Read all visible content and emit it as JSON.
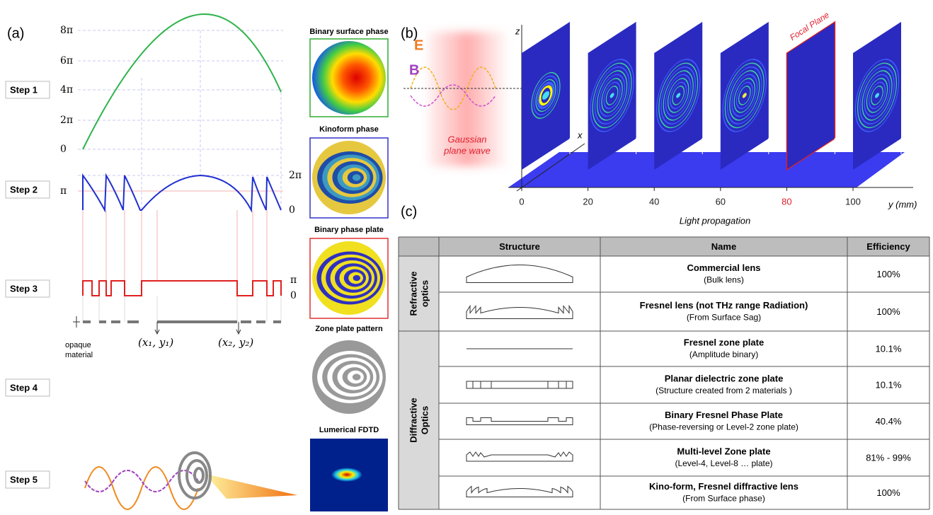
{
  "panel_a": {
    "label": "(a)",
    "steps": [
      "Step 1",
      "Step 2",
      "Step 3",
      "Step 4",
      "Step 5"
    ],
    "step1_ticks": [
      "8π",
      "6π",
      "4π",
      "2π",
      "0"
    ],
    "step2_ticks": [
      "π",
      "2π",
      "0"
    ],
    "step3_ticks": [
      "π",
      "0"
    ],
    "opaque_material": [
      "opaque",
      "material"
    ],
    "points": [
      "(x₁, y₁)",
      "(x₂, y₂)"
    ],
    "image_titles": [
      "Binary surface phase",
      "Kinoform phase",
      "Binary phase plate",
      "Zone plate pattern",
      "Lumerical FDTD"
    ]
  },
  "panel_b": {
    "label": "(b)",
    "E": "E",
    "B": "B",
    "source": [
      "Gaussian",
      "plane wave"
    ],
    "focal_plane": "Focal Plane",
    "z_axis": "z",
    "x_axis": "x",
    "y_axis": "y (mm)",
    "yticks": [
      0,
      20,
      40,
      60,
      80,
      100
    ],
    "tick_colors": [
      "#222",
      "#222",
      "#222",
      "#222",
      "#e0202a",
      "#222"
    ],
    "caption": "Light propagation"
  },
  "panel_c": {
    "label": "(c)",
    "columns": [
      "Structure",
      "Name",
      "Efficiency"
    ],
    "groups": [
      [
        "Refractive",
        "optics"
      ],
      [
        "Diffractive",
        "Optics"
      ]
    ],
    "rows": [
      {
        "name": "Commercial lens",
        "note": "(Bulk lens)",
        "efficiency": "100%"
      },
      {
        "name": "Fresnel lens (not THz range Radiation)",
        "note": "(From Surface Sag)",
        "efficiency": "100%"
      },
      {
        "name": "Fresnel zone plate",
        "note": "(Amplitude binary)",
        "efficiency": "10.1%"
      },
      {
        "name": "Planar dielectric zone plate",
        "note": "(Structure created from 2 materials )",
        "efficiency": "10.1%"
      },
      {
        "name": "Binary Fresnel Phase Plate",
        "note": "(Phase-reversing  or Level-2 zone plate)",
        "efficiency": "40.4%"
      },
      {
        "name": "Multi-level Zone plate",
        "note": "(Level-4, Level-8 … plate)",
        "efficiency": "81% - 99%"
      },
      {
        "name": "Kino-form, Fresnel diffractive lens",
        "note": "(From Surface  phase)",
        "efficiency": "100%"
      }
    ]
  }
}
